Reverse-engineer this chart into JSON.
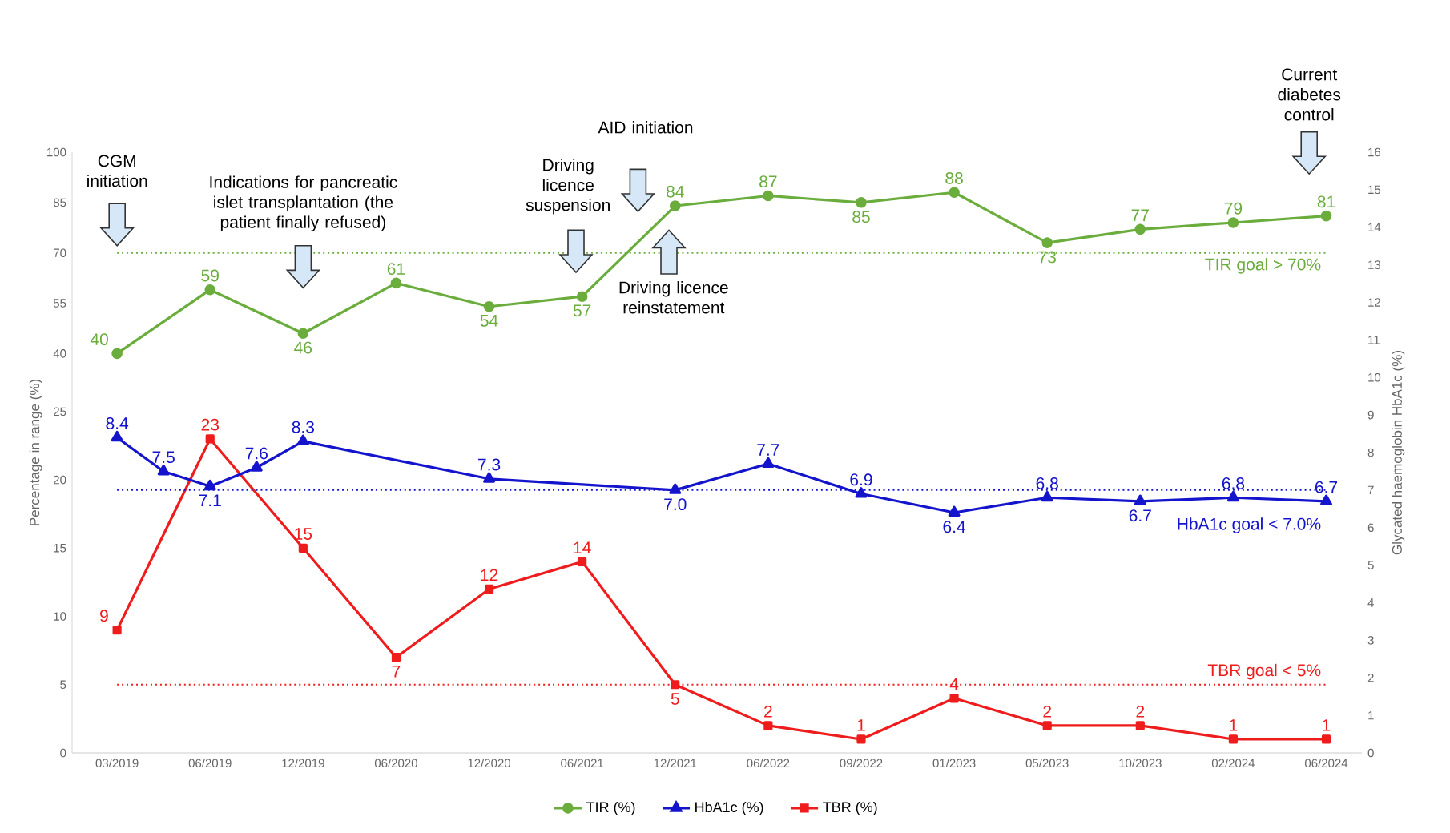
{
  "chart_data": {
    "type": "line",
    "categories": [
      "03/2019",
      null,
      "06/2019",
      null,
      "12/2019",
      null,
      "06/2020",
      null,
      "12/2020",
      null,
      "06/2021",
      null,
      "12/2021",
      null,
      "06/2022",
      null,
      "09/2022",
      null,
      "01/2023",
      null,
      "05/2023",
      null,
      "10/2023",
      null,
      "02/2024",
      null,
      "06/2024"
    ],
    "series": [
      {
        "name": "TIR (%)",
        "color": "#6aad3d",
        "axis": "y3",
        "marker": "circle",
        "values": [
          40,
          null,
          59,
          null,
          46,
          null,
          61,
          null,
          54,
          null,
          57,
          null,
          84,
          null,
          87,
          null,
          85,
          null,
          88,
          null,
          73,
          null,
          77,
          null,
          79,
          null,
          81
        ],
        "value_labels": [
          "40",
          null,
          "59",
          null,
          "46",
          null,
          "61",
          null,
          "54",
          null,
          "57",
          null,
          "84",
          null,
          "87",
          null,
          "85",
          null,
          "88",
          null,
          "73",
          null,
          "77",
          null,
          "79",
          null,
          "81"
        ]
      },
      {
        "name": "HbA1c (%)",
        "color": "#1414cc",
        "axis": "y2",
        "marker": "triangle",
        "values": [
          8.4,
          7.5,
          7.1,
          7.6,
          8.3,
          null,
          null,
          null,
          7.3,
          null,
          null,
          null,
          7.0,
          null,
          7.7,
          null,
          6.9,
          null,
          6.4,
          null,
          6.8,
          null,
          6.7,
          null,
          6.8,
          null,
          6.7
        ],
        "value_labels": [
          "8.4",
          "7.5",
          "7.1",
          "7.6",
          "8.3",
          null,
          null,
          null,
          "7.3",
          null,
          null,
          null,
          "7.0",
          null,
          "7.7",
          null,
          "6.9",
          null,
          "6.4",
          null,
          "6.8",
          null,
          "6.7",
          null,
          "6.8",
          null,
          "6.7"
        ]
      },
      {
        "name": "TBR (%)",
        "color": "#ee1c1c",
        "marker": "square",
        "values": [
          9,
          null,
          23,
          null,
          15,
          null,
          7,
          null,
          12,
          null,
          14,
          null,
          5,
          null,
          2,
          null,
          1,
          null,
          4,
          null,
          2,
          null,
          2,
          null,
          1,
          null,
          1
        ],
        "value_labels": [
          "9",
          null,
          "23",
          null,
          "15",
          null,
          "7",
          null,
          "12",
          null,
          "14",
          null,
          "5",
          null,
          "2",
          null,
          "1",
          null,
          "4",
          null,
          "2",
          null,
          "2",
          null,
          "1",
          null,
          "1"
        ]
      }
    ],
    "ylabel": "Percentage in range (%)",
    "y2label": "Glycated haemoglobin HbA1c (%)",
    "ylim": [
      0,
      44
    ],
    "yticks": [
      0,
      5,
      10,
      15,
      20,
      25
    ],
    "y3lim": [
      -79,
      100
    ],
    "y3ticks": [
      40,
      55,
      70,
      85,
      100
    ],
    "y2lim": [
      0,
      16
    ],
    "y2ticks": [
      0,
      1,
      2,
      3,
      4,
      5,
      6,
      7,
      8,
      9,
      10,
      11,
      12,
      13,
      14,
      15,
      16
    ],
    "ref_lines": [
      {
        "axis": "y3",
        "value": 70,
        "label": "TIR goal > 70%",
        "color": "#6aad3d",
        "line_style": "dotted"
      },
      {
        "axis": "y2",
        "value": 7.0,
        "label": "HbA1c goal < 7.0%",
        "color": "#1414cc",
        "line_style": "dotted"
      },
      {
        "axis": "y",
        "value": 5,
        "label": "TBR goal < 5%",
        "color": "#ee1c1c",
        "line_style": "dotted"
      }
    ],
    "annotations": [
      "CGM initiation",
      "Indications for pancreatic islet transplantation (the patient finally refused)",
      "Driving licence suspension",
      "AID initiation",
      "Driving licence reinstatement",
      "Current diabetes control"
    ],
    "line_style": "solid",
    "legend": "bottom"
  }
}
